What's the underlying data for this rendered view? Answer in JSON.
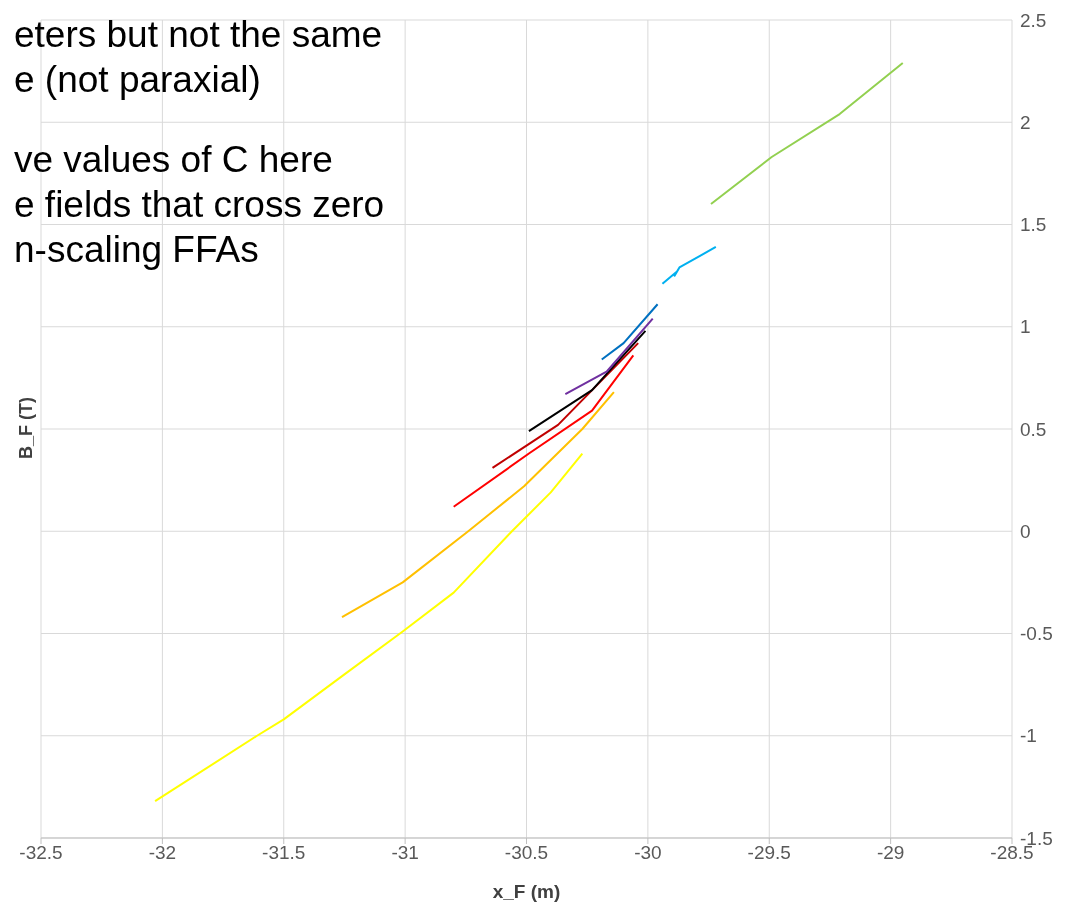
{
  "chart_data": {
    "type": "line",
    "xlabel": "x_F (m)",
    "ylabel": "B_F (T)",
    "annotations": [
      "eters but not the same",
      "e (not paraxial)",
      "ve values of C here",
      "e fields that cross zero",
      "n-scaling FFAs"
    ],
    "xlim": [
      -32.5,
      -28.5
    ],
    "xticks": [
      -32.5,
      -32,
      -31.5,
      -31,
      -30.5,
      -30,
      -29.5,
      -29,
      -28.5
    ],
    "ylim": [
      -1.5,
      2.5
    ],
    "yticks": [
      -1.5,
      -1,
      -0.5,
      0,
      0.5,
      1,
      1.5,
      2,
      2.5
    ],
    "grid": true,
    "legend": false,
    "marker": "none",
    "line_style": "solid",
    "series": [
      {
        "color": "#ffff00",
        "x": [
          -32.03,
          -31.61,
          -31.5,
          -31.25,
          -31.01,
          -30.8,
          -30.56,
          -30.4,
          -30.27
        ],
        "values": [
          -1.32,
          -1.0,
          -0.92,
          -0.7,
          -0.49,
          -0.3,
          0.0,
          0.19,
          0.38
        ]
      },
      {
        "color": "#ffc000",
        "x": [
          -31.26,
          -31.01,
          -30.74,
          -30.51,
          -30.27,
          -30.14
        ],
        "values": [
          -0.42,
          -0.25,
          0.0,
          0.22,
          0.5,
          0.68
        ]
      },
      {
        "color": "#ff0000",
        "x": [
          -30.8,
          -30.49,
          -30.23,
          -30.06
        ],
        "values": [
          0.12,
          0.38,
          0.59,
          0.86
        ]
      },
      {
        "color": "#c00000",
        "x": [
          -30.64,
          -30.37,
          -30.04
        ],
        "values": [
          0.31,
          0.52,
          0.92
        ]
      },
      {
        "color": "#000000",
        "x": [
          -30.49,
          -30.23,
          -30.01
        ],
        "values": [
          0.49,
          0.69,
          0.98
        ]
      },
      {
        "color": "#7030a0",
        "x": [
          -30.34,
          -30.17,
          -29.98
        ],
        "values": [
          0.67,
          0.78,
          1.04
        ]
      },
      {
        "color": "#0070c0",
        "x": [
          -30.19,
          -30.1,
          -29.96
        ],
        "values": [
          0.84,
          0.92,
          1.11
        ]
      },
      {
        "color": "#00b0f0",
        "x": [
          -29.94,
          -29.88,
          -29.89,
          -29.87,
          -29.72
        ],
        "values": [
          1.21,
          1.27,
          1.25,
          1.29,
          1.39
        ]
      },
      {
        "color": "#92d050",
        "x": [
          -29.74,
          -29.49,
          -29.21,
          -28.95
        ],
        "values": [
          1.6,
          1.83,
          2.04,
          2.29
        ]
      }
    ]
  }
}
